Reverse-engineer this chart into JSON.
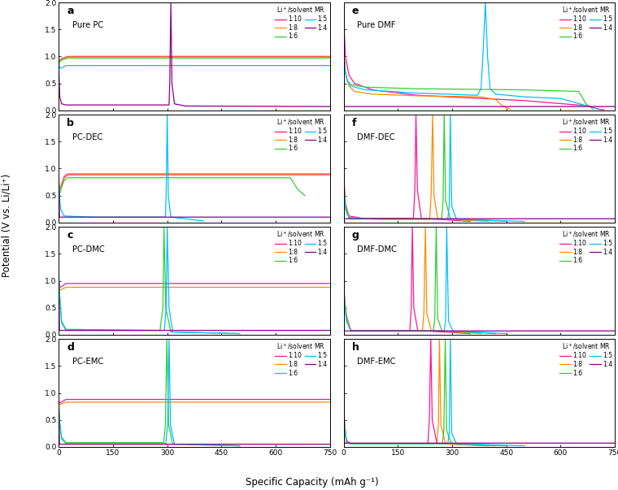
{
  "colors": {
    "1:10": "#FF1493",
    "1:8": "#FF8C00",
    "1:6": "#32CD32",
    "1:5": "#00BFFF",
    "1:4": "#8B008B"
  },
  "subplot_labels": [
    "a",
    "b",
    "c",
    "d",
    "e",
    "f",
    "g",
    "h"
  ],
  "subplot_titles": [
    "Pure PC",
    "PC-DEC",
    "PC-DMC",
    "PC-EMC",
    "Pure DMF",
    "DMF-DEC",
    "DMF-DMC",
    "DMF-EMC"
  ],
  "xlabel": "Specific Capacity (mAh g⁻¹)",
  "ylabel": "Potential (V vs. Li/Li⁺)",
  "xlim": [
    0,
    750
  ],
  "ylim": [
    0.0,
    2.0
  ],
  "yticks": [
    0.0,
    0.5,
    1.0,
    1.5,
    2.0
  ],
  "xticks": [
    0,
    150,
    300,
    450,
    600,
    750
  ],
  "lw": 0.9,
  "figsize": [
    7.6,
    6.03
  ],
  "dpi": 100
}
